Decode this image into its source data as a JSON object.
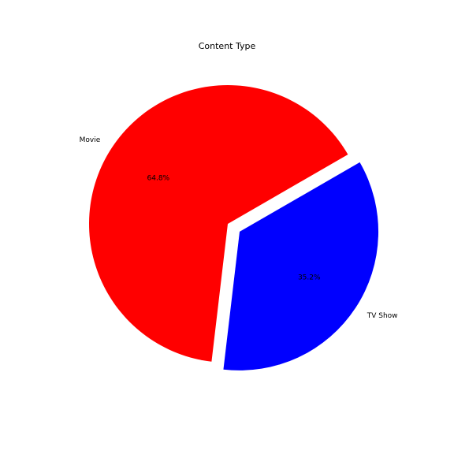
{
  "chart_data": {
    "type": "pie",
    "title": "Content Type",
    "slices": [
      {
        "label": "Movie",
        "value": 64.8,
        "pct_label": "64.8%",
        "color": "#ff0000",
        "exploded": false
      },
      {
        "label": "TV Show",
        "value": 35.2,
        "pct_label": "35.2%",
        "color": "#0000ff",
        "exploded": true
      }
    ],
    "start_angle_deg": 30,
    "direction": "counterclockwise",
    "legend": "none"
  }
}
